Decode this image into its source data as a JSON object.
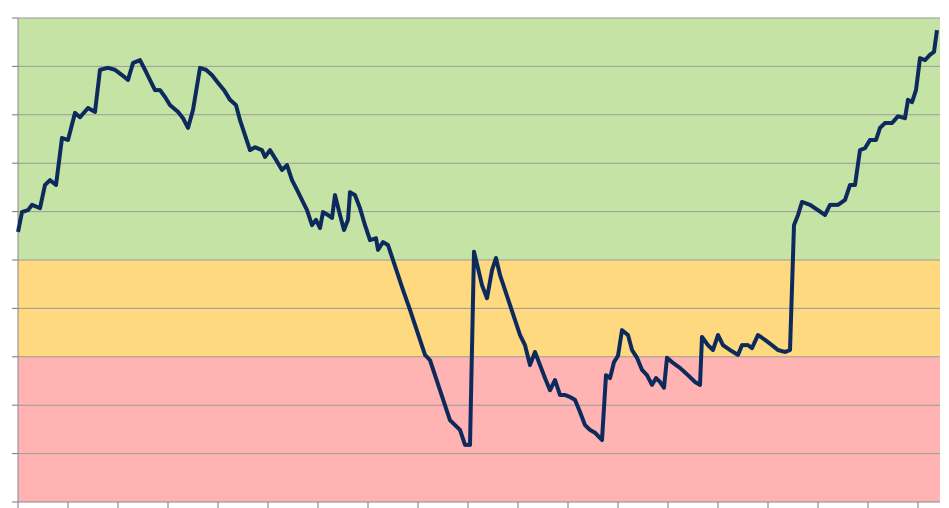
{
  "chart_data": {
    "type": "line",
    "xlim": [
      0,
      922
    ],
    "xticks": [
      0,
      50,
      100,
      150,
      200,
      250,
      300,
      350,
      400,
      450,
      500,
      550,
      600,
      650,
      700,
      750,
      800,
      850,
      900
    ],
    "ylim": [
      0,
      100
    ],
    "yticks": [
      0,
      10,
      20,
      30,
      40,
      50,
      60,
      70,
      80,
      90,
      100
    ],
    "grid": true,
    "bands": [
      {
        "from": 0,
        "to": 30,
        "color": "#ffb3b3"
      },
      {
        "from": 30,
        "to": 50,
        "color": "#fed980"
      },
      {
        "from": 50,
        "to": 100,
        "color": "#c6e3a6"
      }
    ],
    "series": [
      {
        "color": "#0d2a5c",
        "x": [
          0,
          4,
          10,
          14,
          22,
          27,
          32,
          38,
          44,
          50,
          57,
          62,
          70,
          77,
          82,
          90,
          97,
          104,
          110,
          115,
          122,
          127,
          132,
          137,
          142,
          147,
          152,
          160,
          165,
          170,
          175,
          182,
          188,
          194,
          200,
          206,
          212,
          218,
          222,
          227,
          232,
          237,
          244,
          247,
          252,
          258,
          264,
          269,
          274,
          279,
          284,
          289,
          294,
          298,
          302,
          305,
          310,
          314,
          317,
          322,
          326,
          330,
          332,
          337,
          342,
          347,
          352,
          358,
          360,
          365,
          370,
          375,
          380,
          385,
          392,
          397,
          402,
          407,
          412,
          417,
          422,
          427,
          432,
          437,
          442,
          447,
          452,
          456,
          460,
          464,
          469,
          474,
          478,
          482,
          487,
          492,
          497,
          502,
          507,
          512,
          517,
          522,
          527,
          532,
          537,
          542,
          547,
          552,
          557,
          562,
          567,
          572,
          577,
          584,
          588,
          592,
          596,
          600,
          604,
          610,
          614,
          619,
          624,
          629,
          634,
          638,
          642,
          646,
          649,
          654,
          662,
          670,
          677,
          682,
          684,
          690,
          695,
          700,
          705,
          712,
          720,
          724,
          730,
          734,
          740,
          747,
          754,
          760,
          767,
          772,
          776,
          780,
          784,
          792,
          800,
          807,
          812,
          820,
          827,
          832,
          837,
          842,
          847,
          852,
          858,
          862,
          867,
          874,
          880,
          887,
          890,
          894,
          898,
          902,
          907,
          912,
          916,
          919
        ],
        "values": [
          55.8,
          59.9,
          60.3,
          61.4,
          60.7,
          65.5,
          66.5,
          65.5,
          75.2,
          74.8,
          80.4,
          79.5,
          81.4,
          80.6,
          89.3,
          89.7,
          89.3,
          88.2,
          87.2,
          90.7,
          91.3,
          89.3,
          87.2,
          85.1,
          85.1,
          83.7,
          82.0,
          80.6,
          79.3,
          77.3,
          81.0,
          89.7,
          89.3,
          88.2,
          86.6,
          85.1,
          83.1,
          82.0,
          78.9,
          75.8,
          72.7,
          73.3,
          72.7,
          71.3,
          72.7,
          70.7,
          68.6,
          69.6,
          66.5,
          64.5,
          62.4,
          60.3,
          57.2,
          58.3,
          56.6,
          59.9,
          59.3,
          58.7,
          63.4,
          59.3,
          56.2,
          58.3,
          64.0,
          63.4,
          60.7,
          57.2,
          54.1,
          54.5,
          52.1,
          53.7,
          53.1,
          50.0,
          46.9,
          43.8,
          39.7,
          36.6,
          33.5,
          30.4,
          29.3,
          26.2,
          23.1,
          20.0,
          16.9,
          15.9,
          14.9,
          11.8,
          11.8,
          51.7,
          48.3,
          44.8,
          42.1,
          47.9,
          50.4,
          46.9,
          43.8,
          40.7,
          37.6,
          34.5,
          32.4,
          28.3,
          31.0,
          28.3,
          25.6,
          23.1,
          25.2,
          22.1,
          22.1,
          21.7,
          21.1,
          18.6,
          15.9,
          14.9,
          14.3,
          12.8,
          26.2,
          25.6,
          28.9,
          30.2,
          35.5,
          34.5,
          31.4,
          29.8,
          27.3,
          26.2,
          24.2,
          25.6,
          24.8,
          23.6,
          29.8,
          28.9,
          27.7,
          26.2,
          24.8,
          24.2,
          34.1,
          32.4,
          31.4,
          34.5,
          32.4,
          31.4,
          30.4,
          32.4,
          32.4,
          31.8,
          34.5,
          33.5,
          32.4,
          31.4,
          31.0,
          31.4,
          57.2,
          59.3,
          62.0,
          61.4,
          60.3,
          59.3,
          61.4,
          61.4,
          62.4,
          65.5,
          65.5,
          72.7,
          73.1,
          74.8,
          74.8,
          77.3,
          78.3,
          78.3,
          79.7,
          79.3,
          83.1,
          82.6,
          85.1,
          91.7,
          91.3,
          92.4,
          93.0,
          97.5
        ]
      }
    ]
  }
}
